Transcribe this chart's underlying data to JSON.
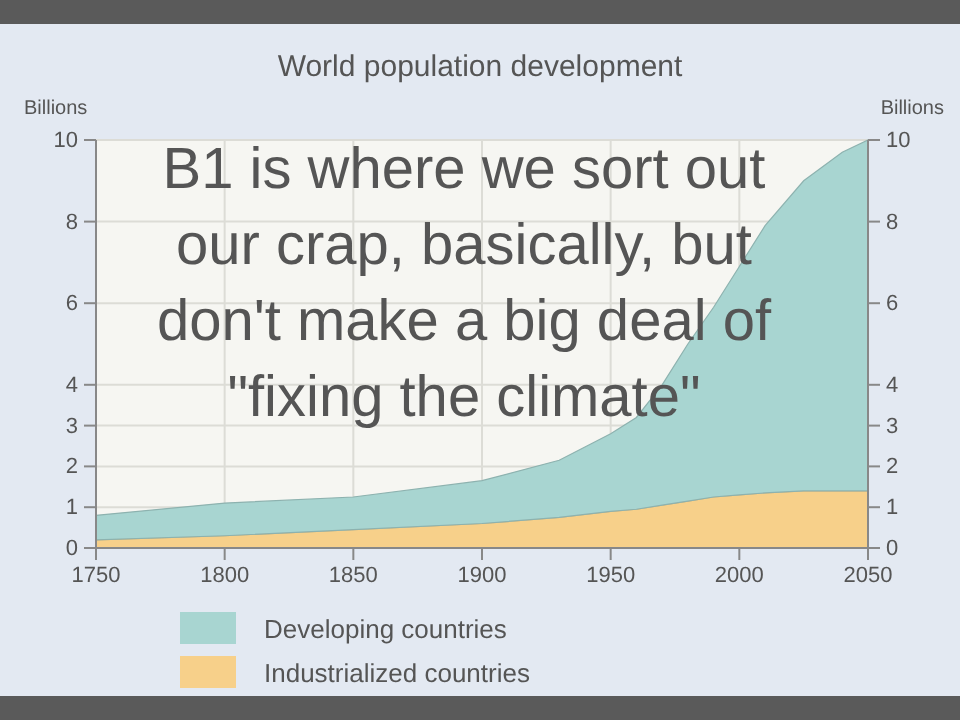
{
  "chart_data": {
    "type": "area",
    "title": "World population development",
    "ylabel": "Billions",
    "y2label": "Billions",
    "x": [
      1750,
      1800,
      1850,
      1900,
      1930,
      1950,
      1960,
      1970,
      1980,
      1990,
      2000,
      2010,
      2025,
      2040,
      2050
    ],
    "stacked": true,
    "series": [
      {
        "name": "Industrialized countries",
        "color": "#f7d08a",
        "values": [
          0.2,
          0.3,
          0.45,
          0.6,
          0.75,
          0.9,
          0.95,
          1.05,
          1.15,
          1.25,
          1.3,
          1.35,
          1.4,
          1.4,
          1.4
        ]
      },
      {
        "name": "Developing countries",
        "color": "#a8d5d1",
        "values": [
          0.6,
          0.8,
          0.8,
          1.05,
          1.4,
          1.9,
          2.25,
          2.95,
          3.85,
          4.65,
          5.6,
          6.55,
          7.6,
          8.3,
          8.6
        ]
      }
    ],
    "xlim": [
      1750,
      2050
    ],
    "xticks": [
      1750,
      1800,
      1850,
      1900,
      1950,
      2000,
      2050
    ],
    "ylim": [
      0,
      10
    ],
    "yticks": [
      0,
      1,
      2,
      3,
      4,
      6,
      8,
      10
    ],
    "y2lim": [
      0,
      10
    ],
    "y2ticks": [
      0,
      1,
      2,
      3,
      4,
      6,
      8,
      10
    ],
    "grid": true,
    "legend": "bottom",
    "annotations": [
      "B1 is where we sort out our crap, basically, but don't make a big deal of \"fixing the climate\""
    ]
  }
}
